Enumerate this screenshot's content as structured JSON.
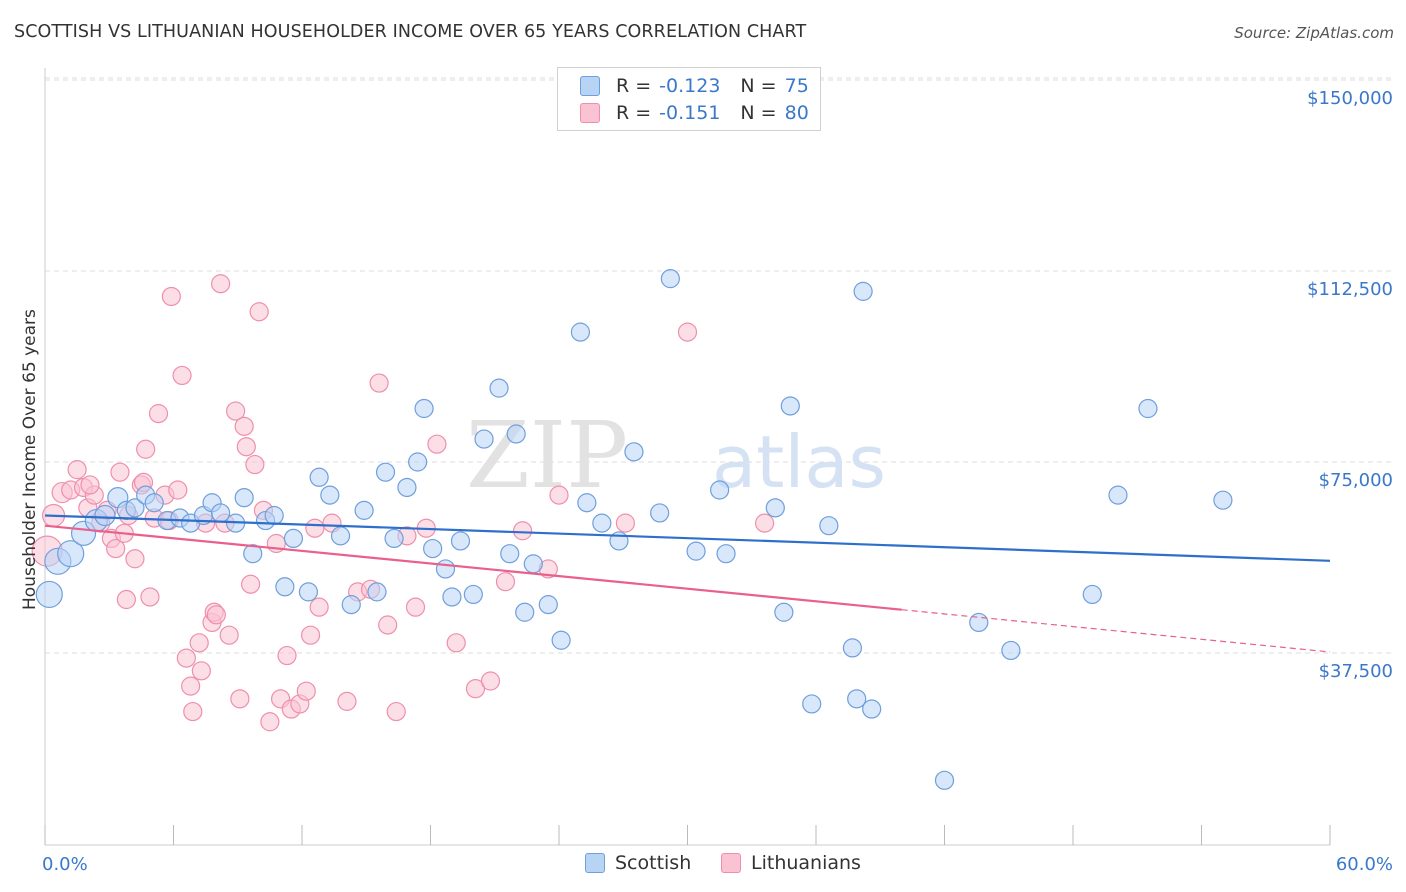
{
  "title": "SCOTTISH VS LITHUANIAN HOUSEHOLDER INCOME OVER 65 YEARS CORRELATION CHART",
  "source": "Source: ZipAtlas.com",
  "watermark": {
    "zip": "ZIP",
    "atlas": "atlas"
  },
  "legend": {
    "rows": [
      {
        "r_label": "R =",
        "r_value": "-0.123",
        "n_label": "N =",
        "n_value": "75"
      },
      {
        "r_label": "R =",
        "r_value": "-0.151",
        "n_label": "N =",
        "n_value": "80"
      }
    ]
  },
  "colors": {
    "scottish_fill": "#b8d4f5",
    "scottish_stroke": "#6f9fdc",
    "scottish_line": "#2e6fcb",
    "lithuanian_fill": "#f9c3d3",
    "lithuanian_stroke": "#ef8fac",
    "lithuanian_line": "#e8608b",
    "tick_label": "#3a78c9",
    "grid": "#dddddd"
  },
  "chart_data": {
    "type": "scatter",
    "title": "SCOTTISH VS LITHUANIAN HOUSEHOLDER INCOME OVER 65 YEARS CORRELATION CHART",
    "xlabel": "",
    "ylabel": "Householder Income Over 65 years",
    "xlim": [
      0,
      60
    ],
    "ylim": [
      0,
      152000
    ],
    "x_tick_labels": [
      "0.0%",
      "60.0%"
    ],
    "y_ticks": [
      37500,
      75000,
      112500,
      150000
    ],
    "y_tick_labels": [
      "$37,500",
      "$75,000",
      "$112,500",
      "$150,000"
    ],
    "grid": true,
    "legend_position": "top-center",
    "series": [
      {
        "name": "Scottish",
        "r": -0.123,
        "n": 75,
        "trend": {
          "x": [
            0,
            60
          ],
          "y": [
            64500,
            55600
          ]
        },
        "points": [
          [
            0.2,
            49000,
            13
          ],
          [
            0.6,
            55500,
            13
          ],
          [
            1.2,
            57000,
            13
          ],
          [
            1.8,
            61000,
            12
          ],
          [
            2.4,
            63500,
            11
          ],
          [
            2.8,
            64500,
            10
          ],
          [
            3.4,
            68000,
            10
          ],
          [
            3.8,
            65500,
            9
          ],
          [
            4.2,
            66000,
            9
          ],
          [
            4.7,
            68500,
            9
          ],
          [
            5.1,
            67000,
            9
          ],
          [
            5.7,
            63500,
            9
          ],
          [
            6.3,
            64000,
            9
          ],
          [
            6.8,
            63000,
            9
          ],
          [
            7.4,
            64500,
            9
          ],
          [
            7.8,
            67000,
            9
          ],
          [
            8.2,
            65000,
            9
          ],
          [
            8.9,
            63000,
            9
          ],
          [
            9.3,
            68000,
            9
          ],
          [
            9.7,
            57000,
            9
          ],
          [
            10.3,
            63500,
            9
          ],
          [
            10.7,
            64500,
            9
          ],
          [
            11.2,
            50500,
            9
          ],
          [
            11.6,
            60000,
            9
          ],
          [
            12.3,
            49500,
            9
          ],
          [
            12.8,
            72000,
            9
          ],
          [
            13.3,
            68500,
            9
          ],
          [
            13.8,
            60500,
            9
          ],
          [
            14.3,
            47000,
            9
          ],
          [
            14.9,
            65500,
            9
          ],
          [
            15.5,
            49500,
            9
          ],
          [
            15.9,
            73000,
            9
          ],
          [
            16.3,
            60000,
            9
          ],
          [
            16.9,
            70000,
            9
          ],
          [
            17.4,
            75000,
            9
          ],
          [
            17.7,
            85500,
            9
          ],
          [
            18.1,
            58000,
            9
          ],
          [
            18.7,
            54000,
            9
          ],
          [
            19.0,
            48500,
            9
          ],
          [
            19.4,
            59500,
            9
          ],
          [
            20.0,
            49000,
            9
          ],
          [
            20.5,
            79500,
            9
          ],
          [
            21.2,
            89500,
            9
          ],
          [
            21.7,
            57000,
            9
          ],
          [
            22.0,
            80500,
            9
          ],
          [
            22.4,
            45500,
            9
          ],
          [
            22.8,
            55000,
            9
          ],
          [
            23.5,
            47000,
            9
          ],
          [
            24.1,
            40000,
            9
          ],
          [
            25.0,
            100500,
            9
          ],
          [
            25.3,
            67000,
            9
          ],
          [
            26.0,
            63000,
            9
          ],
          [
            26.8,
            59500,
            9
          ],
          [
            27.5,
            77000,
            9
          ],
          [
            28.7,
            65000,
            9
          ],
          [
            29.2,
            111000,
            9
          ],
          [
            30.4,
            57500,
            9
          ],
          [
            31.5,
            69500,
            9
          ],
          [
            31.8,
            57000,
            9
          ],
          [
            34.1,
            66000,
            9
          ],
          [
            34.5,
            45500,
            9
          ],
          [
            34.8,
            86000,
            9
          ],
          [
            35.8,
            27500,
            9
          ],
          [
            36.6,
            62500,
            9
          ],
          [
            37.7,
            38500,
            9
          ],
          [
            37.9,
            28500,
            9
          ],
          [
            38.2,
            108500,
            9
          ],
          [
            38.6,
            26500,
            9
          ],
          [
            42.0,
            12500,
            9
          ],
          [
            43.6,
            43500,
            9
          ],
          [
            45.1,
            38000,
            9
          ],
          [
            48.9,
            49000,
            9
          ],
          [
            50.1,
            68500,
            9
          ],
          [
            51.5,
            85500,
            9
          ],
          [
            55.0,
            67500,
            9
          ]
        ]
      },
      {
        "name": "Lithuanians",
        "r": -0.151,
        "n": 80,
        "trend": {
          "x": [
            0,
            40
          ],
          "y": [
            62500,
            46000
          ]
        },
        "trend_dashed": {
          "x": [
            40,
            60
          ],
          "y": [
            46000,
            37700
          ]
        },
        "points": [
          [
            0.1,
            57500,
            15
          ],
          [
            0.4,
            64500,
            11
          ],
          [
            0.8,
            69000,
            10
          ],
          [
            1.2,
            69500,
            9
          ],
          [
            1.5,
            73500,
            9
          ],
          [
            1.8,
            70000,
            9
          ],
          [
            2.0,
            66000,
            9
          ],
          [
            2.3,
            68500,
            9
          ],
          [
            2.6,
            63000,
            9
          ],
          [
            2.9,
            65500,
            9
          ],
          [
            3.1,
            60000,
            9
          ],
          [
            3.3,
            58000,
            9
          ],
          [
            3.5,
            73000,
            9
          ],
          [
            3.7,
            61000,
            9
          ],
          [
            3.8,
            48000,
            9
          ],
          [
            3.9,
            64500,
            9
          ],
          [
            4.2,
            56000,
            9
          ],
          [
            4.5,
            70500,
            9
          ],
          [
            4.7,
            77500,
            9
          ],
          [
            4.9,
            48500,
            9
          ],
          [
            5.1,
            64000,
            9
          ],
          [
            5.3,
            84500,
            9
          ],
          [
            5.6,
            68500,
            9
          ],
          [
            5.8,
            63500,
            9
          ],
          [
            5.9,
            107500,
            9
          ],
          [
            6.2,
            69500,
            9
          ],
          [
            6.4,
            92000,
            9
          ],
          [
            6.6,
            36500,
            9
          ],
          [
            6.8,
            31000,
            9
          ],
          [
            6.9,
            26000,
            9
          ],
          [
            7.2,
            39500,
            9
          ],
          [
            7.3,
            34000,
            9
          ],
          [
            7.5,
            63000,
            9
          ],
          [
            7.8,
            43500,
            9
          ],
          [
            7.9,
            45500,
            9
          ],
          [
            8.0,
            45000,
            9
          ],
          [
            8.2,
            110000,
            9
          ],
          [
            8.4,
            63000,
            9
          ],
          [
            8.6,
            41000,
            9
          ],
          [
            8.9,
            85000,
            9
          ],
          [
            9.1,
            28500,
            9
          ],
          [
            9.3,
            82000,
            9
          ],
          [
            9.4,
            78000,
            9
          ],
          [
            9.6,
            51000,
            9
          ],
          [
            9.8,
            74500,
            9
          ],
          [
            10.0,
            104500,
            9
          ],
          [
            10.2,
            65500,
            9
          ],
          [
            10.5,
            24000,
            9
          ],
          [
            10.8,
            59000,
            9
          ],
          [
            11.0,
            28500,
            9
          ],
          [
            11.3,
            37000,
            9
          ],
          [
            11.5,
            26500,
            9
          ],
          [
            11.9,
            27500,
            9
          ],
          [
            12.2,
            30000,
            9
          ],
          [
            12.4,
            41000,
            9
          ],
          [
            12.6,
            62000,
            9
          ],
          [
            12.8,
            46500,
            9
          ],
          [
            13.4,
            63000,
            9
          ],
          [
            14.1,
            28000,
            9
          ],
          [
            14.6,
            49500,
            9
          ],
          [
            15.2,
            50000,
            9
          ],
          [
            15.6,
            90500,
            9
          ],
          [
            16.0,
            43000,
            9
          ],
          [
            16.4,
            26000,
            9
          ],
          [
            16.9,
            60500,
            9
          ],
          [
            17.3,
            46500,
            9
          ],
          [
            17.8,
            62000,
            9
          ],
          [
            18.3,
            78500,
            9
          ],
          [
            19.2,
            39500,
            9
          ],
          [
            20.1,
            30500,
            9
          ],
          [
            20.8,
            32000,
            9
          ],
          [
            21.5,
            51500,
            9
          ],
          [
            22.3,
            61500,
            9
          ],
          [
            23.5,
            54000,
            9
          ],
          [
            24.0,
            68500,
            9
          ],
          [
            27.1,
            63000,
            9
          ],
          [
            30.0,
            100500,
            9
          ],
          [
            33.6,
            63000,
            9
          ],
          [
            4.6,
            71000,
            9
          ],
          [
            2.1,
            70500,
            9
          ]
        ]
      }
    ]
  }
}
